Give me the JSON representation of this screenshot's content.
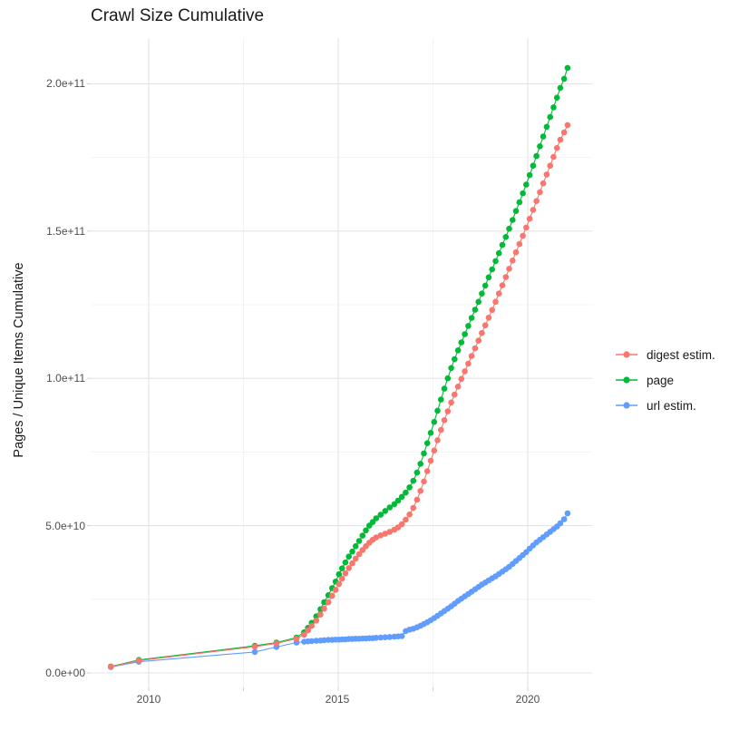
{
  "title": "Crawl Size Cumulative",
  "y_axis": {
    "label": "Pages / Unique Items Cumulative",
    "ticks": [
      "0.0e+00",
      "5.0e+10",
      "1.0e+11",
      "1.5e+11",
      "2.0e+11"
    ],
    "tick_values_e10": [
      0,
      5,
      10,
      15,
      20
    ],
    "minor_values_e10": [
      2.5,
      7.5,
      12.5,
      17.5
    ]
  },
  "x_axis": {
    "ticks": [
      "2010",
      "2015",
      "2020"
    ],
    "tick_values": [
      2010,
      2015,
      2020
    ],
    "minor_values": [
      2012.5,
      2017.5
    ]
  },
  "legend": {
    "items": [
      {
        "label": "digest estim.",
        "color": "#F8766D"
      },
      {
        "label": "page",
        "color": "#00BA38"
      },
      {
        "label": "url estim.",
        "color": "#619CFF"
      }
    ]
  },
  "chart_data": {
    "type": "scatter",
    "title": "Crawl Size Cumulative",
    "xlabel": "",
    "ylabel": "Pages / Unique Items Cumulative",
    "xlim": [
      2008.45,
      2021.75
    ],
    "ylim_e10": [
      0,
      21.6
    ],
    "grid": "on",
    "legend_position": "right",
    "value_scale": 10000000000.0,
    "series": [
      {
        "name": "url estim.",
        "color": "#619CFF",
        "points": [
          [
            2009.0,
            0.2
          ],
          [
            2009.74,
            0.38
          ],
          [
            2012.8,
            0.71
          ],
          [
            2013.37,
            0.88
          ],
          [
            2013.9,
            1.03
          ],
          [
            2014.1,
            1.06
          ],
          [
            2014.2,
            1.07
          ],
          [
            2014.3,
            1.08
          ],
          [
            2014.42,
            1.09
          ],
          [
            2014.53,
            1.1
          ],
          [
            2014.63,
            1.11
          ],
          [
            2014.74,
            1.12
          ],
          [
            2014.84,
            1.12
          ],
          [
            2014.93,
            1.13
          ],
          [
            2015.02,
            1.13
          ],
          [
            2015.1,
            1.14
          ],
          [
            2015.19,
            1.14
          ],
          [
            2015.28,
            1.15
          ],
          [
            2015.37,
            1.15
          ],
          [
            2015.46,
            1.16
          ],
          [
            2015.55,
            1.16
          ],
          [
            2015.64,
            1.17
          ],
          [
            2015.73,
            1.17
          ],
          [
            2015.82,
            1.18
          ],
          [
            2015.91,
            1.18
          ],
          [
            2016.0,
            1.19
          ],
          [
            2016.12,
            1.2
          ],
          [
            2016.24,
            1.21
          ],
          [
            2016.36,
            1.22
          ],
          [
            2016.48,
            1.23
          ],
          [
            2016.58,
            1.24
          ],
          [
            2016.68,
            1.25
          ],
          [
            2016.78,
            1.42
          ],
          [
            2016.88,
            1.47
          ],
          [
            2016.98,
            1.5
          ],
          [
            2017.08,
            1.55
          ],
          [
            2017.17,
            1.6
          ],
          [
            2017.26,
            1.66
          ],
          [
            2017.35,
            1.72
          ],
          [
            2017.44,
            1.79
          ],
          [
            2017.53,
            1.86
          ],
          [
            2017.62,
            1.94
          ],
          [
            2017.71,
            2.02
          ],
          [
            2017.8,
            2.1
          ],
          [
            2017.89,
            2.18
          ],
          [
            2017.98,
            2.26
          ],
          [
            2018.07,
            2.35
          ],
          [
            2018.16,
            2.44
          ],
          [
            2018.25,
            2.52
          ],
          [
            2018.34,
            2.6
          ],
          [
            2018.43,
            2.68
          ],
          [
            2018.52,
            2.76
          ],
          [
            2018.61,
            2.84
          ],
          [
            2018.7,
            2.92
          ],
          [
            2018.79,
            3.0
          ],
          [
            2018.88,
            3.07
          ],
          [
            2018.97,
            3.14
          ],
          [
            2019.06,
            3.21
          ],
          [
            2019.15,
            3.28
          ],
          [
            2019.24,
            3.36
          ],
          [
            2019.33,
            3.44
          ],
          [
            2019.42,
            3.52
          ],
          [
            2019.51,
            3.6
          ],
          [
            2019.6,
            3.7
          ],
          [
            2019.69,
            3.8
          ],
          [
            2019.78,
            3.9
          ],
          [
            2019.87,
            4.0
          ],
          [
            2019.96,
            4.1
          ],
          [
            2020.05,
            4.22
          ],
          [
            2020.14,
            4.33
          ],
          [
            2020.23,
            4.43
          ],
          [
            2020.32,
            4.52
          ],
          [
            2020.41,
            4.61
          ],
          [
            2020.5,
            4.7
          ],
          [
            2020.59,
            4.79
          ],
          [
            2020.68,
            4.88
          ],
          [
            2020.77,
            4.97
          ],
          [
            2020.86,
            5.08
          ],
          [
            2020.96,
            5.22
          ],
          [
            2021.05,
            5.42
          ]
        ]
      },
      {
        "name": "page",
        "color": "#00BA38",
        "points": [
          [
            2009.0,
            0.22
          ],
          [
            2009.74,
            0.44
          ],
          [
            2012.8,
            0.92
          ],
          [
            2013.37,
            1.03
          ],
          [
            2013.9,
            1.2
          ],
          [
            2014.1,
            1.38
          ],
          [
            2014.2,
            1.53
          ],
          [
            2014.3,
            1.7
          ],
          [
            2014.42,
            1.92
          ],
          [
            2014.53,
            2.16
          ],
          [
            2014.63,
            2.4
          ],
          [
            2014.74,
            2.64
          ],
          [
            2014.84,
            2.88
          ],
          [
            2014.93,
            3.1
          ],
          [
            2015.02,
            3.35
          ],
          [
            2015.1,
            3.55
          ],
          [
            2015.19,
            3.75
          ],
          [
            2015.28,
            3.95
          ],
          [
            2015.37,
            4.12
          ],
          [
            2015.46,
            4.3
          ],
          [
            2015.55,
            4.48
          ],
          [
            2015.64,
            4.66
          ],
          [
            2015.73,
            4.84
          ],
          [
            2015.82,
            5.0
          ],
          [
            2015.91,
            5.12
          ],
          [
            2016.0,
            5.25
          ],
          [
            2016.12,
            5.37
          ],
          [
            2016.24,
            5.5
          ],
          [
            2016.36,
            5.62
          ],
          [
            2016.48,
            5.73
          ],
          [
            2016.58,
            5.85
          ],
          [
            2016.68,
            5.98
          ],
          [
            2016.78,
            6.12
          ],
          [
            2016.88,
            6.3
          ],
          [
            2016.98,
            6.52
          ],
          [
            2017.08,
            6.8
          ],
          [
            2017.17,
            7.1
          ],
          [
            2017.26,
            7.45
          ],
          [
            2017.35,
            7.8
          ],
          [
            2017.44,
            8.15
          ],
          [
            2017.53,
            8.52
          ],
          [
            2017.62,
            8.9
          ],
          [
            2017.71,
            9.28
          ],
          [
            2017.8,
            9.65
          ],
          [
            2017.89,
            10.0
          ],
          [
            2017.98,
            10.35
          ],
          [
            2018.07,
            10.65
          ],
          [
            2018.16,
            10.95
          ],
          [
            2018.25,
            11.22
          ],
          [
            2018.34,
            11.5
          ],
          [
            2018.43,
            11.78
          ],
          [
            2018.52,
            12.05
          ],
          [
            2018.61,
            12.33
          ],
          [
            2018.7,
            12.6
          ],
          [
            2018.79,
            12.88
          ],
          [
            2018.88,
            13.15
          ],
          [
            2018.97,
            13.43
          ],
          [
            2019.06,
            13.7
          ],
          [
            2019.15,
            13.98
          ],
          [
            2019.24,
            14.25
          ],
          [
            2019.33,
            14.53
          ],
          [
            2019.42,
            14.8
          ],
          [
            2019.51,
            15.08
          ],
          [
            2019.6,
            15.38
          ],
          [
            2019.69,
            15.68
          ],
          [
            2019.78,
            15.98
          ],
          [
            2019.87,
            16.28
          ],
          [
            2019.96,
            16.58
          ],
          [
            2020.05,
            16.9
          ],
          [
            2020.14,
            17.22
          ],
          [
            2020.23,
            17.55
          ],
          [
            2020.32,
            17.88
          ],
          [
            2020.41,
            18.21
          ],
          [
            2020.5,
            18.54
          ],
          [
            2020.59,
            18.87
          ],
          [
            2020.68,
            19.2
          ],
          [
            2020.77,
            19.53
          ],
          [
            2020.86,
            19.86
          ],
          [
            2020.96,
            20.17
          ],
          [
            2021.05,
            20.54
          ]
        ]
      },
      {
        "name": "digest estim.",
        "color": "#F8766D",
        "points": [
          [
            2009.0,
            0.21
          ],
          [
            2009.74,
            0.42
          ],
          [
            2012.8,
            0.89
          ],
          [
            2013.37,
            1.0
          ],
          [
            2013.9,
            1.16
          ],
          [
            2014.1,
            1.3
          ],
          [
            2014.2,
            1.44
          ],
          [
            2014.3,
            1.6
          ],
          [
            2014.42,
            1.78
          ],
          [
            2014.53,
            1.98
          ],
          [
            2014.63,
            2.18
          ],
          [
            2014.74,
            2.4
          ],
          [
            2014.84,
            2.62
          ],
          [
            2014.93,
            2.82
          ],
          [
            2015.02,
            3.02
          ],
          [
            2015.1,
            3.2
          ],
          [
            2015.19,
            3.38
          ],
          [
            2015.28,
            3.56
          ],
          [
            2015.37,
            3.72
          ],
          [
            2015.46,
            3.88
          ],
          [
            2015.55,
            4.03
          ],
          [
            2015.64,
            4.17
          ],
          [
            2015.73,
            4.3
          ],
          [
            2015.82,
            4.42
          ],
          [
            2015.91,
            4.52
          ],
          [
            2016.0,
            4.6
          ],
          [
            2016.12,
            4.67
          ],
          [
            2016.24,
            4.73
          ],
          [
            2016.36,
            4.79
          ],
          [
            2016.48,
            4.86
          ],
          [
            2016.58,
            4.94
          ],
          [
            2016.68,
            5.05
          ],
          [
            2016.78,
            5.2
          ],
          [
            2016.88,
            5.38
          ],
          [
            2016.98,
            5.6
          ],
          [
            2017.08,
            5.88
          ],
          [
            2017.17,
            6.18
          ],
          [
            2017.26,
            6.5
          ],
          [
            2017.35,
            6.85
          ],
          [
            2017.44,
            7.2
          ],
          [
            2017.53,
            7.55
          ],
          [
            2017.62,
            7.9
          ],
          [
            2017.71,
            8.25
          ],
          [
            2017.8,
            8.58
          ],
          [
            2017.89,
            8.88
          ],
          [
            2017.98,
            9.18
          ],
          [
            2018.07,
            9.45
          ],
          [
            2018.16,
            9.72
          ],
          [
            2018.25,
            9.98
          ],
          [
            2018.34,
            10.24
          ],
          [
            2018.43,
            10.5
          ],
          [
            2018.52,
            10.76
          ],
          [
            2018.61,
            11.02
          ],
          [
            2018.7,
            11.28
          ],
          [
            2018.79,
            11.54
          ],
          [
            2018.88,
            11.8
          ],
          [
            2018.97,
            12.06
          ],
          [
            2019.06,
            12.32
          ],
          [
            2019.15,
            12.6
          ],
          [
            2019.24,
            12.88
          ],
          [
            2019.33,
            13.16
          ],
          [
            2019.42,
            13.44
          ],
          [
            2019.51,
            13.72
          ],
          [
            2019.6,
            14.0
          ],
          [
            2019.69,
            14.28
          ],
          [
            2019.78,
            14.56
          ],
          [
            2019.87,
            14.84
          ],
          [
            2019.96,
            15.12
          ],
          [
            2020.05,
            15.42
          ],
          [
            2020.14,
            15.72
          ],
          [
            2020.23,
            16.02
          ],
          [
            2020.32,
            16.32
          ],
          [
            2020.41,
            16.62
          ],
          [
            2020.5,
            16.92
          ],
          [
            2020.59,
            17.22
          ],
          [
            2020.68,
            17.52
          ],
          [
            2020.77,
            17.82
          ],
          [
            2020.86,
            18.1
          ],
          [
            2020.96,
            18.35
          ],
          [
            2021.05,
            18.6
          ]
        ]
      }
    ]
  }
}
